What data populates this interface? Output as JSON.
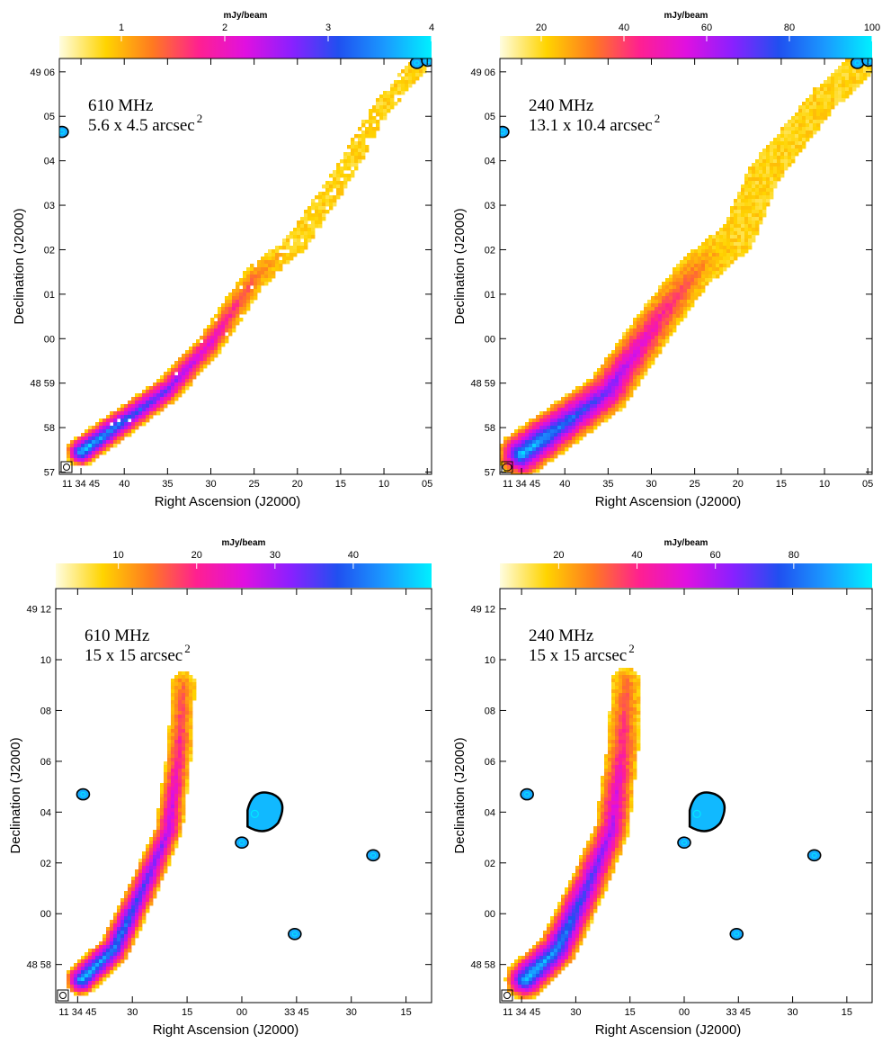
{
  "chart_data": [
    {
      "type": "heatmap",
      "title": "",
      "annotation_freq": "610 MHz",
      "annotation_beam": "5.6 x 4.5 arcsec",
      "annotation_beam_exp": "2",
      "colorbar_label": "mJy/beam",
      "colorbar_range": [
        0.4,
        4
      ],
      "colorbar_ticks": [
        "1",
        "2",
        "3",
        "4"
      ],
      "colorbar_tick_values": [
        1,
        2,
        3,
        4
      ],
      "xlabel": "Right Ascension (J2000)",
      "ylabel": "Declination (J2000)",
      "x_ticks": [
        "11 34 45",
        "40",
        "35",
        "30",
        "25",
        "20",
        "15",
        "10",
        "05"
      ],
      "x_tick_values": [
        45,
        40,
        35,
        30,
        25,
        20,
        15,
        10,
        5
      ],
      "x_range": [
        47.5,
        4.5
      ],
      "y_ticks": [
        "57",
        "58",
        "48 59",
        "00",
        "01",
        "02",
        "03",
        "04",
        "05",
        "49 06"
      ],
      "y_tick_values": [
        57,
        58,
        59,
        60,
        61,
        62,
        63,
        64,
        65,
        66
      ],
      "y_range": [
        56.95,
        66.3
      ],
      "ridge": [
        [
          45,
          57.45
        ],
        [
          40,
          58.15
        ],
        [
          35,
          58.85
        ],
        [
          30,
          59.9
        ],
        [
          25,
          61.35
        ],
        [
          20,
          62.2
        ],
        [
          15,
          63.6
        ],
        [
          10,
          65.3
        ],
        [
          6,
          66.1
        ]
      ]
    },
    {
      "type": "heatmap",
      "title": "",
      "annotation_freq": "240 MHz",
      "annotation_beam": "13.1 x 10.4 arcsec",
      "annotation_beam_exp": "2",
      "colorbar_label": "mJy/beam",
      "colorbar_range": [
        10,
        100
      ],
      "colorbar_ticks": [
        "20",
        "40",
        "60",
        "80",
        "100"
      ],
      "colorbar_tick_values": [
        20,
        40,
        60,
        80,
        100
      ],
      "xlabel": "Right Ascension (J2000)",
      "ylabel": "Declination (J2000)",
      "x_ticks": [
        "11 34 45",
        "40",
        "35",
        "30",
        "25",
        "20",
        "15",
        "10",
        "05"
      ],
      "x_tick_values": [
        45,
        40,
        35,
        30,
        25,
        20,
        15,
        10,
        5
      ],
      "x_range": [
        47.5,
        4.5
      ],
      "y_ticks": [
        "57",
        "58",
        "48 59",
        "00",
        "01",
        "02",
        "03",
        "04",
        "05",
        "49 06"
      ],
      "y_tick_values": [
        57,
        58,
        59,
        60,
        61,
        62,
        63,
        64,
        65,
        66
      ],
      "y_range": [
        56.95,
        66.3
      ],
      "ridge": [
        [
          45,
          57.4
        ],
        [
          40,
          58.1
        ],
        [
          35,
          58.8
        ],
        [
          30,
          60.2
        ],
        [
          25,
          61.5
        ],
        [
          20,
          62.3
        ],
        [
          17,
          63.7
        ],
        [
          10,
          65.4
        ],
        [
          6,
          66.1
        ]
      ]
    },
    {
      "type": "heatmap",
      "title": "",
      "annotation_freq": "610 MHz",
      "annotation_beam": "15 x 15 arcsec",
      "annotation_beam_exp": "2",
      "colorbar_label": "mJy/beam",
      "colorbar_range": [
        2,
        50
      ],
      "colorbar_ticks": [
        "10",
        "20",
        "30",
        "40"
      ],
      "colorbar_tick_values": [
        10,
        20,
        30,
        40
      ],
      "xlabel": "Right Ascension (J2000)",
      "ylabel": "Declination (J2000)",
      "x_ticks": [
        "11 34 45",
        "30",
        "15",
        "00",
        "33 45",
        "30",
        "15"
      ],
      "x_tick_values": [
        45,
        30,
        15,
        0,
        -15,
        -30,
        -45
      ],
      "x_range": [
        51,
        -52
      ],
      "y_ticks": [
        "48 58",
        "00",
        "02",
        "04",
        "06",
        "08",
        "10",
        "49 12"
      ],
      "y_tick_values": [
        58,
        60,
        62,
        64,
        66,
        68,
        70,
        72
      ],
      "y_range": [
        56.5,
        72.8
      ],
      "ridge": [
        [
          44,
          57.4
        ],
        [
          35,
          58.6
        ],
        [
          27,
          61.0
        ],
        [
          20,
          63.3
        ],
        [
          17,
          66.5
        ],
        [
          16,
          69.1
        ]
      ]
    },
    {
      "type": "heatmap",
      "title": "",
      "annotation_freq": "240 MHz",
      "annotation_beam": "15 x 15 arcsec",
      "annotation_beam_exp": "2",
      "colorbar_label": "mJy/beam",
      "colorbar_range": [
        5,
        100
      ],
      "colorbar_ticks": [
        "20",
        "40",
        "60",
        "80"
      ],
      "colorbar_tick_values": [
        20,
        40,
        60,
        80
      ],
      "xlabel": "Right Ascension (J2000)",
      "ylabel": "Declination (J2000)",
      "x_ticks": [
        "11 34 45",
        "30",
        "15",
        "00",
        "33 45",
        "30",
        "15"
      ],
      "x_tick_values": [
        45,
        30,
        15,
        0,
        -15,
        -30,
        -45
      ],
      "x_range": [
        51,
        -52
      ],
      "y_ticks": [
        "48 58",
        "00",
        "02",
        "04",
        "06",
        "08",
        "10",
        "49 12"
      ],
      "y_tick_values": [
        58,
        60,
        62,
        64,
        66,
        68,
        70,
        72
      ],
      "y_range": [
        56.5,
        72.8
      ],
      "ridge": [
        [
          44,
          57.4
        ],
        [
          35,
          58.6
        ],
        [
          27,
          61.0
        ],
        [
          20,
          63.3
        ],
        [
          17,
          66.5
        ],
        [
          16,
          69.1
        ]
      ]
    }
  ],
  "colors": {
    "cmap": [
      "#fffde0",
      "#ffd400",
      "#ff7a20",
      "#ff2090",
      "#e010e0",
      "#8a20ff",
      "#2050f0",
      "#1a9aff",
      "#00f0ff"
    ],
    "contour": "#000000",
    "contour_inner": "#00e8ff",
    "frame": "#000000"
  }
}
